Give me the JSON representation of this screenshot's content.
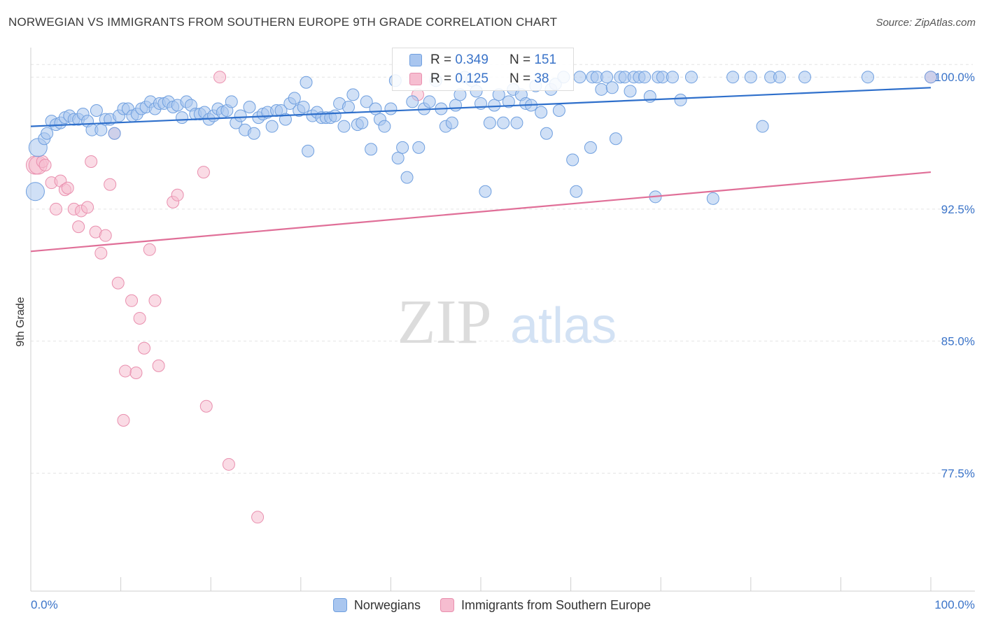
{
  "header": {
    "title": "NORWEGIAN VS IMMIGRANTS FROM SOUTHERN EUROPE 9TH GRADE CORRELATION CHART",
    "source": "Source: ZipAtlas.com"
  },
  "watermark": {
    "zip": "ZIP",
    "atlas": "atlas"
  },
  "colors": {
    "blue_fill": "#a9c6ef",
    "blue_stroke": "#6f9fdf",
    "blue_line": "#2e6fcb",
    "pink_fill": "#f6bdd0",
    "pink_stroke": "#e98fae",
    "pink_line": "#e06f98",
    "axis_text": "#3b74c9",
    "grid": "#e4e4e4"
  },
  "legend_stats": [
    {
      "r_label": "R =",
      "r_value": "0.349",
      "n_label": "N =",
      "n_value": "151"
    },
    {
      "r_label": "R =",
      "r_value": "0.125",
      "n_label": "N =",
      "n_value": "38"
    }
  ],
  "chart_data": {
    "type": "scatter",
    "title": "NORWEGIAN VS IMMIGRANTS FROM SOUTHERN EUROPE 9TH GRADE CORRELATION CHART",
    "xlabel": "",
    "ylabel": "9th Grade",
    "xlim": [
      0,
      100
    ],
    "ylim": [
      70.8,
      101.2
    ],
    "x_tick_labels": [
      "0.0%",
      "100.0%"
    ],
    "y_ticks": [
      77.5,
      85.0,
      92.5,
      100.0
    ],
    "y_tick_labels": [
      "77.5%",
      "85.0%",
      "92.5%",
      "100.0%"
    ],
    "legend": [
      "Norwegians",
      "Immigrants from Southern Europe"
    ],
    "series": [
      {
        "name": "Norwegians",
        "trend": [
          [
            0,
            97.2
          ],
          [
            100,
            99.4
          ]
        ],
        "points": [
          [
            0.8,
            96.0
          ],
          [
            0.5,
            93.5
          ],
          [
            1.5,
            96.5
          ],
          [
            1.8,
            96.8
          ],
          [
            2.3,
            97.5
          ],
          [
            2.8,
            97.3
          ],
          [
            3.3,
            97.4
          ],
          [
            3.8,
            97.7
          ],
          [
            4.3,
            97.8
          ],
          [
            4.8,
            97.6
          ],
          [
            5.3,
            97.6
          ],
          [
            5.8,
            97.9
          ],
          [
            6.3,
            97.5
          ],
          [
            6.8,
            97.0
          ],
          [
            7.3,
            98.1
          ],
          [
            7.8,
            97.0
          ],
          [
            8.3,
            97.6
          ],
          [
            8.8,
            97.6
          ],
          [
            9.3,
            96.8
          ],
          [
            9.8,
            97.8
          ],
          [
            10.3,
            98.2
          ],
          [
            10.8,
            98.2
          ],
          [
            11.3,
            97.8
          ],
          [
            11.8,
            97.9
          ],
          [
            12.3,
            98.2
          ],
          [
            12.8,
            98.3
          ],
          [
            13.3,
            98.6
          ],
          [
            13.8,
            98.2
          ],
          [
            14.3,
            98.5
          ],
          [
            14.8,
            98.5
          ],
          [
            15.3,
            98.6
          ],
          [
            15.8,
            98.3
          ],
          [
            16.3,
            98.4
          ],
          [
            16.8,
            97.7
          ],
          [
            17.3,
            98.6
          ],
          [
            17.8,
            98.4
          ],
          [
            18.3,
            97.9
          ],
          [
            18.8,
            97.9
          ],
          [
            19.3,
            98.0
          ],
          [
            19.8,
            97.6
          ],
          [
            20.3,
            97.8
          ],
          [
            20.8,
            98.2
          ],
          [
            21.3,
            98.0
          ],
          [
            21.8,
            98.1
          ],
          [
            22.3,
            98.6
          ],
          [
            22.8,
            97.4
          ],
          [
            23.3,
            97.8
          ],
          [
            23.8,
            97.0
          ],
          [
            24.3,
            98.3
          ],
          [
            24.8,
            96.8
          ],
          [
            25.3,
            97.7
          ],
          [
            25.8,
            97.9
          ],
          [
            26.3,
            98.0
          ],
          [
            26.8,
            97.2
          ],
          [
            27.3,
            98.1
          ],
          [
            27.8,
            98.1
          ],
          [
            28.3,
            97.6
          ],
          [
            28.8,
            98.5
          ],
          [
            29.3,
            98.8
          ],
          [
            29.8,
            98.1
          ],
          [
            30.3,
            98.3
          ],
          [
            30.8,
            95.8
          ],
          [
            31.3,
            97.8
          ],
          [
            31.8,
            98.0
          ],
          [
            32.3,
            97.7
          ],
          [
            32.8,
            97.7
          ],
          [
            33.3,
            97.7
          ],
          [
            33.8,
            97.8
          ],
          [
            34.3,
            98.5
          ],
          [
            34.8,
            97.2
          ],
          [
            35.3,
            98.3
          ],
          [
            35.8,
            99.0
          ],
          [
            36.3,
            97.3
          ],
          [
            36.8,
            97.4
          ],
          [
            37.3,
            98.6
          ],
          [
            37.8,
            95.9
          ],
          [
            38.3,
            98.2
          ],
          [
            38.8,
            97.6
          ],
          [
            39.3,
            97.2
          ],
          [
            40.0,
            98.2
          ],
          [
            40.8,
            95.4
          ],
          [
            41.3,
            96.0
          ],
          [
            41.8,
            94.3
          ],
          [
            42.4,
            98.6
          ],
          [
            43.1,
            96.0
          ],
          [
            43.7,
            98.2
          ],
          [
            44.3,
            98.6
          ],
          [
            45.0,
            99.8
          ],
          [
            45.6,
            98.2
          ],
          [
            46.1,
            97.2
          ],
          [
            46.8,
            97.4
          ],
          [
            47.2,
            98.4
          ],
          [
            47.7,
            99.0
          ],
          [
            48.2,
            100.0
          ],
          [
            49.0,
            99.8
          ],
          [
            49.5,
            99.2
          ],
          [
            50.0,
            98.5
          ],
          [
            50.5,
            93.5
          ],
          [
            51.0,
            97.4
          ],
          [
            51.5,
            98.4
          ],
          [
            52.0,
            99.0
          ],
          [
            52.5,
            97.4
          ],
          [
            53.1,
            98.6
          ],
          [
            53.6,
            99.3
          ],
          [
            54.0,
            97.4
          ],
          [
            54.5,
            99.0
          ],
          [
            55.0,
            98.5
          ],
          [
            55.6,
            98.4
          ],
          [
            56.1,
            99.5
          ],
          [
            56.7,
            98.0
          ],
          [
            57.3,
            96.8
          ],
          [
            57.8,
            99.3
          ],
          [
            58.3,
            99.6
          ],
          [
            59.2,
            100.0
          ],
          [
            60.2,
            95.3
          ],
          [
            60.6,
            93.5
          ],
          [
            61.0,
            100.0
          ],
          [
            62.2,
            96.0
          ],
          [
            62.4,
            100.0
          ],
          [
            62.9,
            100.0
          ],
          [
            63.4,
            99.3
          ],
          [
            64.0,
            100.0
          ],
          [
            64.6,
            99.4
          ],
          [
            65.0,
            96.5
          ],
          [
            65.5,
            100.0
          ],
          [
            66.0,
            100.0
          ],
          [
            66.6,
            99.2
          ],
          [
            67.0,
            100.0
          ],
          [
            67.6,
            100.0
          ],
          [
            68.2,
            100.0
          ],
          [
            68.8,
            98.9
          ],
          [
            69.4,
            93.2
          ],
          [
            69.7,
            100.0
          ],
          [
            70.2,
            100.0
          ],
          [
            71.3,
            100.0
          ],
          [
            72.2,
            98.7
          ],
          [
            73.4,
            100.0
          ],
          [
            75.8,
            93.1
          ],
          [
            78.0,
            100.0
          ],
          [
            80.0,
            100.0
          ],
          [
            81.3,
            97.2
          ],
          [
            82.2,
            100.0
          ],
          [
            83.2,
            100.0
          ],
          [
            86.0,
            100.0
          ],
          [
            93.0,
            100.0
          ],
          [
            100.0,
            100.0
          ],
          [
            40.5,
            99.8
          ],
          [
            30.6,
            99.7
          ],
          [
            58.7,
            98.1
          ]
        ]
      },
      {
        "name": "Immigrants from Southern Europe",
        "trend": [
          [
            0,
            90.1
          ],
          [
            100,
            94.6
          ]
        ],
        "points": [
          [
            0.5,
            95.0
          ],
          [
            0.8,
            95.0
          ],
          [
            1.3,
            95.2
          ],
          [
            1.6,
            95.0
          ],
          [
            2.3,
            94.0
          ],
          [
            2.8,
            92.5
          ],
          [
            3.3,
            94.1
          ],
          [
            3.8,
            93.6
          ],
          [
            4.1,
            93.7
          ],
          [
            4.8,
            92.5
          ],
          [
            5.3,
            91.5
          ],
          [
            5.6,
            92.4
          ],
          [
            6.3,
            92.6
          ],
          [
            6.7,
            95.2
          ],
          [
            7.2,
            91.2
          ],
          [
            7.8,
            90.0
          ],
          [
            8.3,
            91.0
          ],
          [
            8.8,
            93.9
          ],
          [
            9.3,
            96.8
          ],
          [
            9.7,
            88.3
          ],
          [
            10.5,
            83.3
          ],
          [
            10.3,
            80.5
          ],
          [
            11.2,
            87.3
          ],
          [
            11.7,
            83.2
          ],
          [
            12.1,
            86.3
          ],
          [
            12.6,
            84.6
          ],
          [
            13.2,
            90.2
          ],
          [
            13.8,
            87.3
          ],
          [
            14.2,
            83.6
          ],
          [
            15.8,
            92.9
          ],
          [
            16.3,
            93.3
          ],
          [
            19.2,
            94.6
          ],
          [
            19.5,
            81.3
          ],
          [
            21.0,
            100.0
          ],
          [
            22.0,
            78.0
          ],
          [
            25.2,
            75.0
          ],
          [
            43.0,
            99.0
          ],
          [
            100.0,
            100.0
          ]
        ]
      }
    ]
  }
}
